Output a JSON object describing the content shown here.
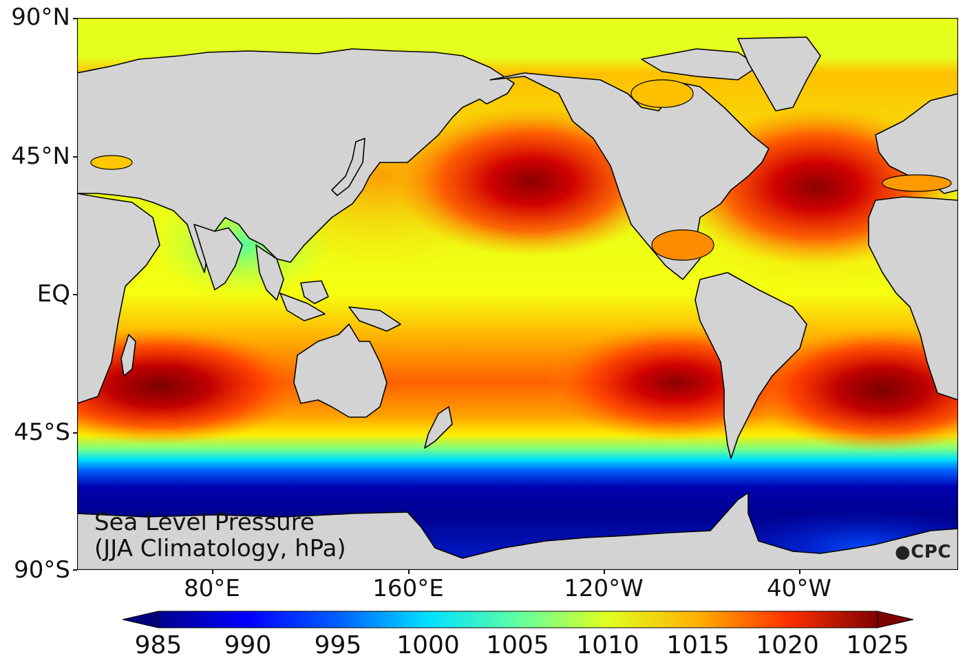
{
  "map": {
    "title_line1": "Sea Level Pressure",
    "title_line2": "(JJA Climatology, hPa)",
    "credit": "CPC",
    "land_color": "#d3d3d3",
    "coast_color": "#000000",
    "latitude_labels": [
      "90°N",
      "45°N",
      "EQ",
      "45°S",
      "90°S"
    ],
    "longitude_labels": [
      "80°E",
      "160°E",
      "120°W",
      "40°W"
    ],
    "highs": [
      "North Pacific High",
      "Azores-Bermuda High",
      "South Indian Ocean High",
      "South Pacific High",
      "South Atlantic High"
    ]
  },
  "colorbar": {
    "labels": [
      "985",
      "990",
      "995",
      "1000",
      "1005",
      "1010",
      "1015",
      "1020",
      "1025"
    ],
    "colormap": "jet",
    "extend": "both"
  }
}
